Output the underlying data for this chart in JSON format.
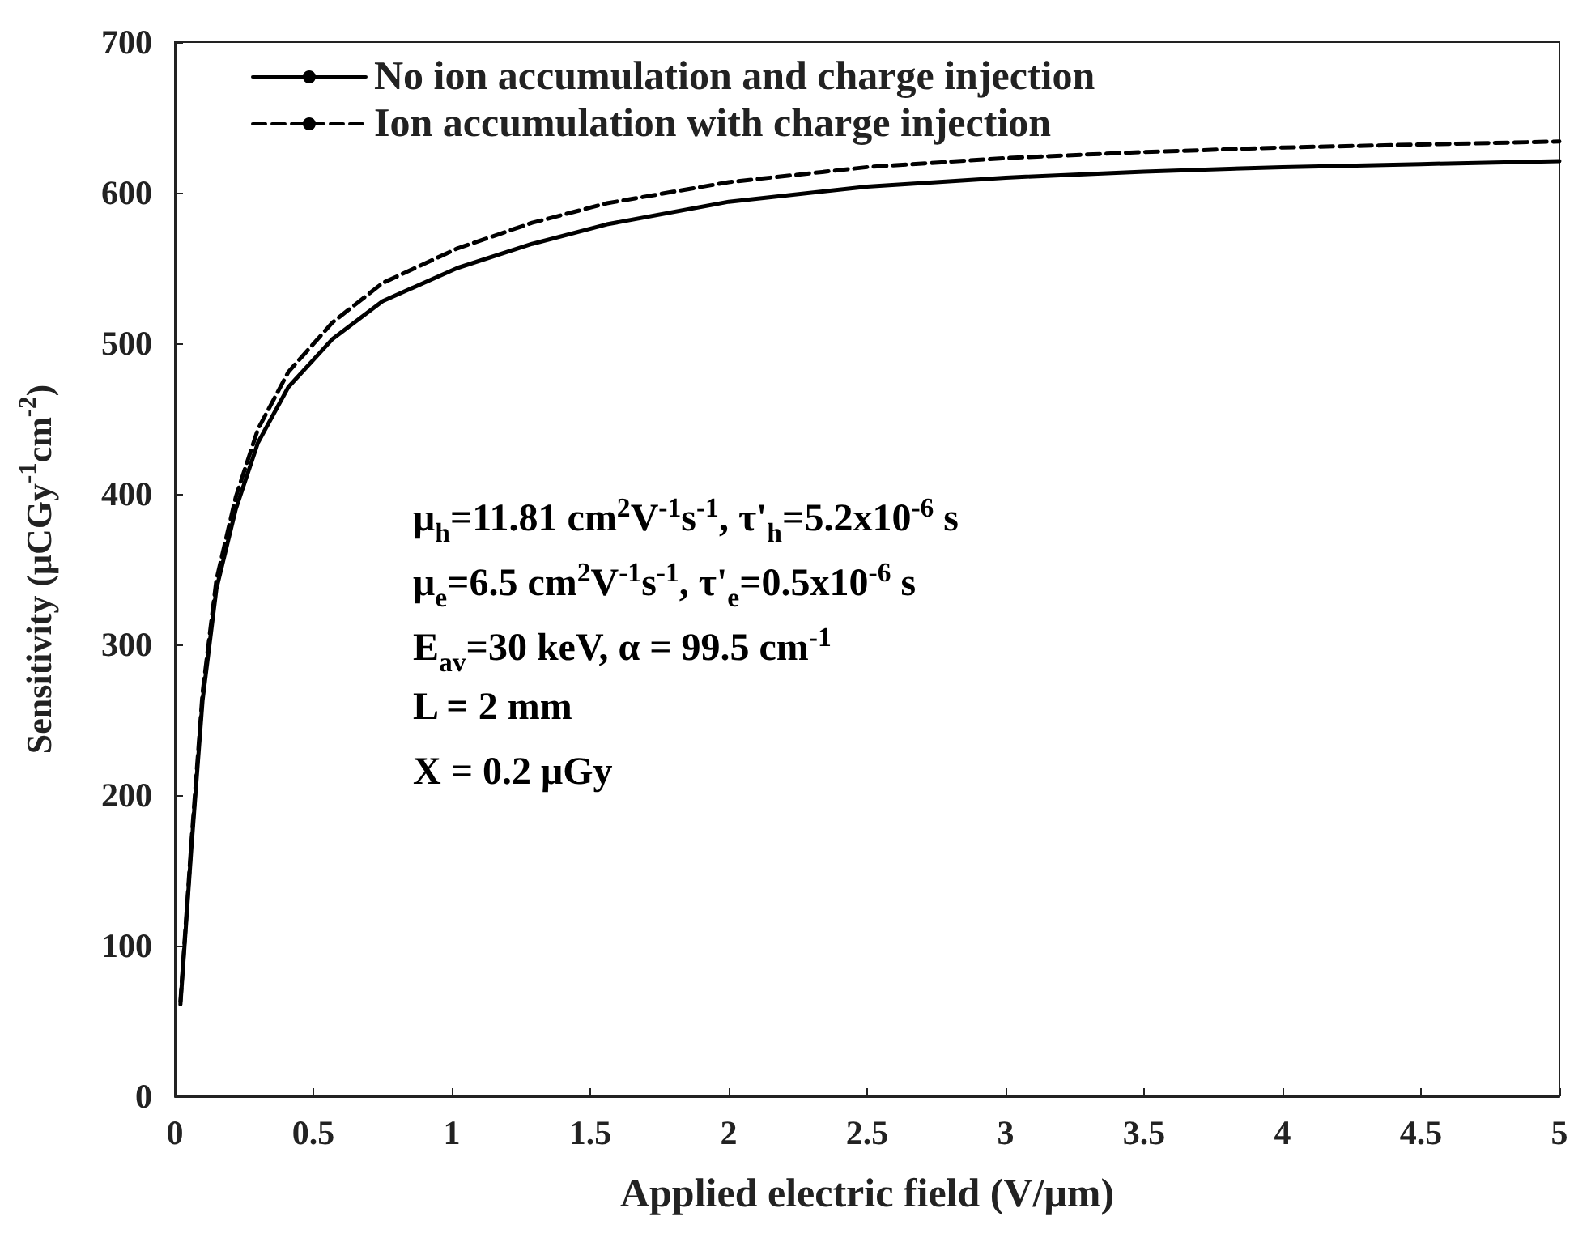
{
  "chart_data": {
    "type": "line",
    "xlabel": "Applied electric field (V/μm)",
    "ylabel": "Sensitivity (μCGy$^{-1}$cm$^{-2}$)",
    "xlim": [
      0,
      5
    ],
    "xticks": [
      0,
      0.5,
      1,
      1.5,
      2,
      2.5,
      3,
      3.5,
      4,
      4.5,
      5
    ],
    "ylim": [
      0,
      700
    ],
    "yticks": [
      0,
      100,
      200,
      300,
      400,
      500,
      600,
      700
    ],
    "grid": false,
    "legend": "top left",
    "marker": "none",
    "series": [
      {
        "name": "No ion accumulation and charge injection",
        "color": "#000000",
        "line_style": "solid",
        "x": [
          0.02,
          0.06,
          0.1,
          0.15,
          0.22,
          0.3,
          0.41,
          0.57,
          0.75,
          1.02,
          1.29,
          1.56,
          2,
          2.5,
          3,
          3.5,
          4,
          4.5,
          5
        ],
        "values": [
          61,
          166,
          263,
          337,
          390,
          434,
          471,
          503,
          528,
          550,
          566,
          579,
          594,
          604,
          610,
          614,
          617,
          619,
          621
        ]
      },
      {
        "name": "Ion accumulation with charge injection",
        "color": "#000000",
        "line_style": "dashed",
        "x": [
          0.02,
          0.06,
          0.1,
          0.15,
          0.22,
          0.3,
          0.41,
          0.57,
          0.75,
          1.02,
          1.29,
          1.56,
          2,
          2.5,
          3,
          3.5,
          4,
          4.5,
          5
        ],
        "values": [
          63,
          170,
          268,
          343,
          398,
          443,
          481,
          514,
          540,
          563,
          580,
          593,
          607,
          617,
          623,
          627,
          630,
          632,
          634
        ]
      }
    ],
    "annotations": [
      "μ$_{h}$=11.81 cm$^{2}$V$^{-1}$s$^{-1}$, τ'$_{h}$=5.2x10$^{-6}$ s",
      "μ$_{e}$=6.5 cm$^{2}$V$^{-1}$s$^{-1}$, τ'$_{e}$=0.5x10$^{-6}$ s",
      "E$_{av}$=30 keV, α = 99.5 cm$^{-1}$",
      "L = 2 mm",
      "X = 0.2 μGy"
    ]
  }
}
